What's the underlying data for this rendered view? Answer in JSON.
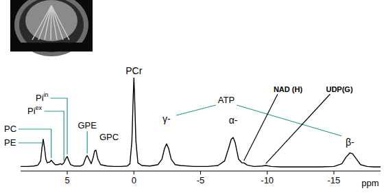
{
  "chart_data": {
    "type": "line",
    "xlabel": "ppm",
    "xlim": [
      8.5,
      -18.5
    ],
    "xticks": [
      5,
      0,
      -5,
      -10,
      -15
    ],
    "ylim": [
      0,
      100
    ],
    "tick_labels": "x",
    "grid": false,
    "color": "#000000",
    "x": [
      8.5,
      8.0,
      7.5,
      7.2,
      7.0,
      6.9,
      6.8,
      6.7,
      6.6,
      6.5,
      6.3,
      6.2,
      6.1,
      5.9,
      5.7,
      5.5,
      5.4,
      5.25,
      5.1,
      5.0,
      4.9,
      4.75,
      4.5,
      4.0,
      3.8,
      3.6,
      3.5,
      3.4,
      3.2,
      3.05,
      2.95,
      2.85,
      2.7,
      2.5,
      2.0,
      1.5,
      1.0,
      0.5,
      0.3,
      0.15,
      0.05,
      0,
      -0.05,
      -0.15,
      -0.3,
      -0.6,
      -1.2,
      -1.8,
      -2.1,
      -2.3,
      -2.45,
      -2.6,
      -2.8,
      -3.1,
      -3.5,
      -4.5,
      -5.5,
      -6.3,
      -6.8,
      -7.1,
      -7.3,
      -7.45,
      -7.6,
      -7.85,
      -8.1,
      -8.25,
      -8.5,
      -9.0,
      -9.6,
      -9.9,
      -10.3,
      -11,
      -12,
      -13,
      -14,
      -15,
      -15.6,
      -15.9,
      -16.2,
      -16.4,
      -16.7,
      -17.0,
      -17.5,
      -18,
      -18.5
    ],
    "values": [
      2,
      2,
      2.5,
      3.5,
      8,
      22,
      32,
      22,
      10,
      6,
      7,
      9,
      7,
      4,
      4,
      5,
      4,
      6,
      11,
      13,
      9,
      4,
      2.5,
      2.5,
      4,
      12,
      14,
      11,
      5,
      12,
      19,
      20,
      10,
      4,
      2.5,
      2,
      2,
      2.5,
      5,
      30,
      80,
      100,
      80,
      30,
      6,
      3,
      2.5,
      4,
      10,
      22,
      27,
      22,
      10,
      4,
      3,
      2,
      2,
      3,
      8,
      22,
      32,
      34,
      28,
      10,
      6,
      6,
      3.5,
      2,
      2.5,
      3,
      2,
      1.5,
      1.5,
      1.5,
      1.5,
      2,
      5,
      12,
      17,
      16,
      10,
      4,
      2,
      1.5,
      1.5
    ],
    "annotations": [
      {
        "text": "PE",
        "x": 6.8
      },
      {
        "text": "PC",
        "x": 6.2
      },
      {
        "text": "Pi",
        "superscript": "ex",
        "x": 5.25
      },
      {
        "text": "Pi",
        "superscript": "in",
        "x": 5.0
      },
      {
        "text": "GPE",
        "x": 3.5
      },
      {
        "text": "GPC",
        "x": 2.9
      },
      {
        "text": "PCr",
        "x": 0
      },
      {
        "text": "γ-",
        "x": -2.45
      },
      {
        "text": "ATP",
        "x": -7.45
      },
      {
        "text": "α-",
        "x": -7.45
      },
      {
        "text": "NAD (H)",
        "x": -8.25
      },
      {
        "text": "UDP(G)",
        "x": -9.9
      },
      {
        "text": "β-",
        "x": -16.2
      }
    ]
  }
}
